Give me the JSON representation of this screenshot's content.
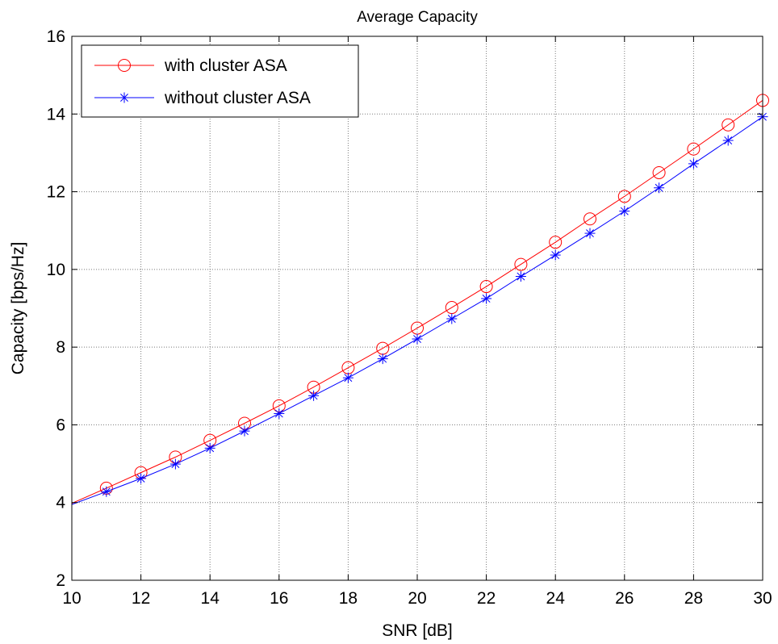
{
  "chart_data": {
    "type": "line",
    "title": "Average Capacity",
    "xlabel": "SNR [dB]",
    "ylabel": "Capacity [bps/Hz]",
    "xlim": [
      10,
      30
    ],
    "ylim": [
      2,
      16
    ],
    "xticks": [
      10,
      12,
      14,
      16,
      18,
      20,
      22,
      24,
      26,
      28,
      30
    ],
    "yticks": [
      2,
      4,
      6,
      8,
      10,
      12,
      14,
      16
    ],
    "grid": true,
    "legend_position": "top-left",
    "x": [
      10,
      11,
      12,
      13,
      14,
      15,
      16,
      17,
      18,
      19,
      20,
      21,
      22,
      23,
      24,
      25,
      26,
      27,
      28,
      29,
      30
    ],
    "series": [
      {
        "name": "with cluster ASA",
        "color": "#ff0000",
        "marker": "circle",
        "marker_every_from": 1,
        "values": [
          3.98,
          4.37,
          4.77,
          5.17,
          5.6,
          6.04,
          6.49,
          6.97,
          7.47,
          7.97,
          8.49,
          9.02,
          9.56,
          10.13,
          10.7,
          11.3,
          11.88,
          12.49,
          13.1,
          13.72,
          14.35
        ]
      },
      {
        "name": "without cluster ASA",
        "color": "#0000ff",
        "marker": "asterisk",
        "marker_every_from": 1,
        "values": [
          3.95,
          4.28,
          4.62,
          4.99,
          5.4,
          5.84,
          6.29,
          6.75,
          7.21,
          7.7,
          8.21,
          8.73,
          9.25,
          9.82,
          10.37,
          10.93,
          11.5,
          12.1,
          12.72,
          13.32,
          13.93
        ]
      }
    ]
  }
}
